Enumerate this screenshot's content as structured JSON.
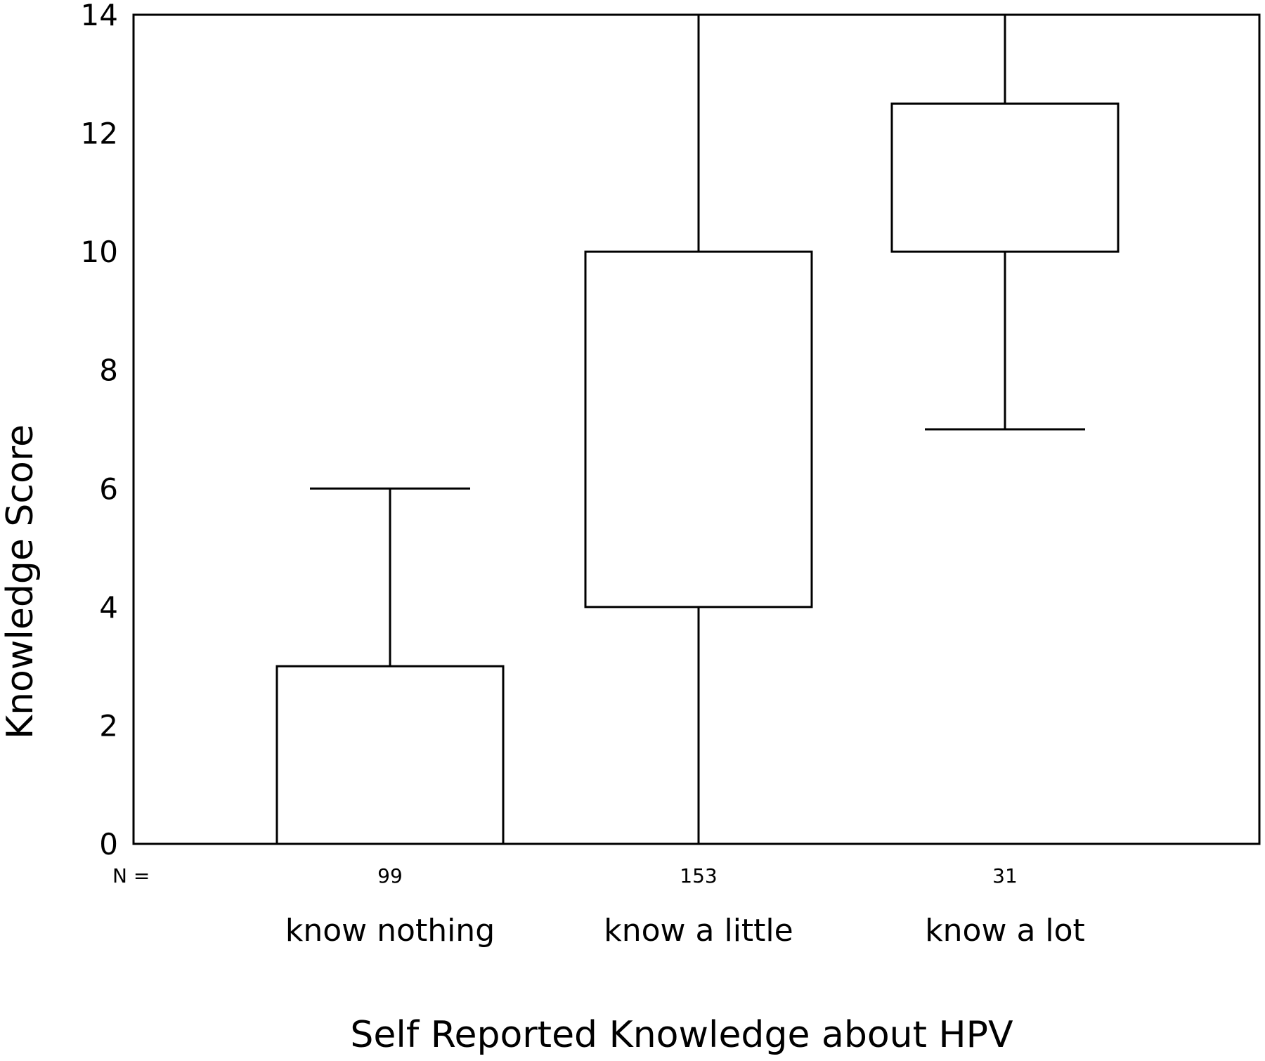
{
  "chart_data": {
    "type": "box",
    "title": "",
    "xlabel": "Self Reported Knowledge about HPV",
    "ylabel": "Knowledge Score",
    "ylim": [
      0,
      14
    ],
    "yticks": [
      "0",
      "2",
      "4",
      "6",
      "8",
      "10",
      "12",
      "14"
    ],
    "n_prefix": "N =",
    "grid": false,
    "legend": "none",
    "categories": [
      "know nothing",
      "know a little",
      "know a lot"
    ],
    "n": [
      "99",
      "153",
      "31"
    ],
    "boxes": [
      {
        "category": "know nothing",
        "whisker_low": 0,
        "q1": 0,
        "q3": 3,
        "whisker_high": 6
      },
      {
        "category": "know a little",
        "whisker_low": 0,
        "q1": 4,
        "q3": 10,
        "whisker_high": 14
      },
      {
        "category": "know a lot",
        "whisker_low": 7,
        "q1": 10,
        "q3": 12.5,
        "whisker_high": 14
      }
    ]
  }
}
